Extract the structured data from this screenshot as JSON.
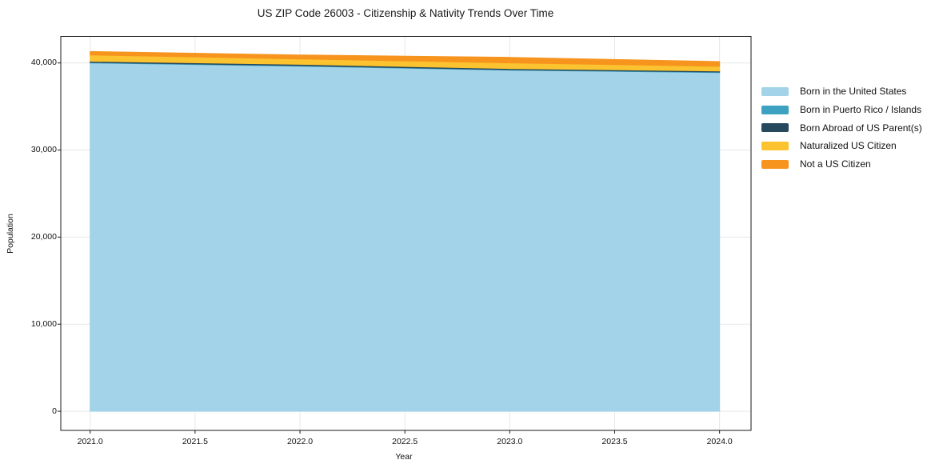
{
  "chart_data": {
    "type": "area",
    "stacked": true,
    "title": "US ZIP Code 26003 - Citizenship & Nativity Trends Over Time",
    "xlabel": "Year",
    "ylabel": "Population",
    "x": [
      2021,
      2022,
      2023,
      2024
    ],
    "series": [
      {
        "name": "Born in the United States",
        "color": "#A3D3E9",
        "values": [
          40000,
          39630,
          39170,
          38900
        ]
      },
      {
        "name": "Born in Puerto Rico / Islands",
        "color": "#3DA2C2",
        "values": [
          60,
          70,
          60,
          60
        ]
      },
      {
        "name": "Born Abroad of US Parent(s)",
        "color": "#26495E",
        "values": [
          130,
          140,
          130,
          125
        ]
      },
      {
        "name": "Naturalized US Citizen",
        "color": "#FBC32F",
        "values": [
          730,
          620,
          645,
          525
        ]
      },
      {
        "name": "Not a US Citizen",
        "color": "#F7941E",
        "values": [
          395,
          460,
          640,
          550
        ]
      }
    ],
    "xlim": [
      2020.86,
      2024.15
    ],
    "ylim": [
      -2200,
      43050
    ],
    "x_ticks": [
      2021.0,
      2021.5,
      2022.0,
      2022.5,
      2023.0,
      2023.5,
      2024.0
    ],
    "x_tick_labels": [
      "2021.0",
      "2021.5",
      "2022.0",
      "2022.5",
      "2023.0",
      "2023.5",
      "2024.0"
    ],
    "y_ticks": [
      0,
      10000,
      20000,
      30000,
      40000
    ],
    "y_tick_labels": [
      "0",
      "10,000",
      "20,000",
      "30,000",
      "40,000"
    ],
    "grid": true,
    "legend_position": "outside-right"
  },
  "colors": {
    "background": "#ffffff",
    "grid": "#e7e7e7",
    "spine": "#1a1a1a",
    "text": "#111111"
  }
}
